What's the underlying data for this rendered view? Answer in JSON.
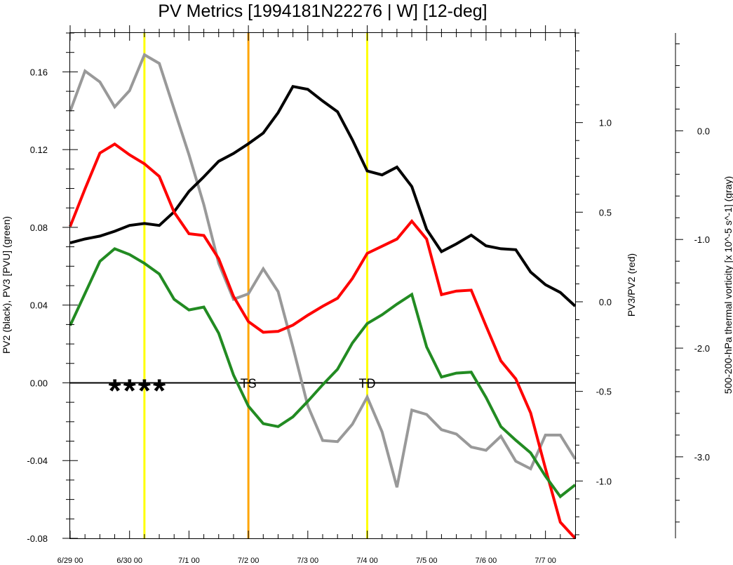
{
  "chart_data": {
    "type": "line",
    "title": "PV Metrics [1994181N22276 | W] [12-deg]",
    "x_axis": {
      "tick_labels": [
        "6/29 00",
        "6/30 00",
        "7/1 00",
        "7/2 00",
        "7/3 00",
        "7/4 00",
        "7/5 00",
        "7/6 00",
        "7/7 00"
      ],
      "tick_values": [
        0,
        1,
        2,
        3,
        4,
        5,
        6,
        7,
        8
      ],
      "range": [
        0,
        8.5
      ],
      "minor_step": 0.25
    },
    "left_axis": {
      "label": "PV2 (black), PV3 [PVU] (green)",
      "range": [
        -0.08,
        0.18
      ],
      "ticks": [
        -0.08,
        -0.04,
        0.0,
        0.04,
        0.08,
        0.12,
        0.16
      ],
      "tick_labels": [
        "-0.08",
        "-0.04",
        "0.00",
        "0.04",
        "0.08",
        "0.12",
        "0.16"
      ],
      "minor_step": 0.01
    },
    "right_axis": {
      "label": "PV3/PV2 (red)",
      "range": [
        -1.32,
        1.5
      ],
      "ticks": [
        -1.0,
        -0.5,
        0.0,
        0.5,
        1.0
      ],
      "tick_labels": [
        "-1.0",
        "-0.5",
        "0.0",
        "0.5",
        "1.0"
      ],
      "minor_step": 0.1
    },
    "far_right_axis": {
      "label": "500-200-hPa thermal vorticity [x 10^-5 s^-1] (gray)",
      "range": [
        -3.75,
        0.9
      ],
      "ticks": [
        -3.0,
        -2.0,
        -1.0,
        0.0
      ],
      "tick_labels": [
        "-3.0",
        "-2.0",
        "-1.0",
        "0.0"
      ],
      "minor_step": 0.2
    },
    "zero_line": 0.0,
    "series": [
      {
        "name": "PV2",
        "axis": "left",
        "color": "#000000",
        "x": [
          0,
          0.25,
          0.5,
          0.75,
          1,
          1.25,
          1.5,
          1.75,
          2,
          2.25,
          2.5,
          2.75,
          3,
          3.25,
          3.5,
          3.75,
          4,
          4.25,
          4.5,
          4.75,
          5,
          5.25,
          5.5,
          5.75,
          6,
          6.25,
          6.5,
          6.75,
          7,
          7.25,
          7.5,
          7.75,
          8,
          8.25,
          8.5
        ],
        "y": [
          0.072,
          0.074,
          0.0755,
          0.078,
          0.081,
          0.082,
          0.081,
          0.088,
          0.0985,
          0.106,
          0.114,
          0.118,
          0.123,
          0.1285,
          0.139,
          0.1525,
          0.151,
          0.145,
          0.1395,
          0.125,
          0.109,
          0.107,
          0.111,
          0.101,
          0.079,
          0.0675,
          0.0715,
          0.076,
          0.0705,
          0.069,
          0.0685,
          0.057,
          0.0505,
          0.0465,
          0.0395
        ]
      },
      {
        "name": "PV3",
        "axis": "left",
        "color": "#228b22",
        "x": [
          0,
          0.25,
          0.5,
          0.75,
          1,
          1.25,
          1.5,
          1.75,
          2,
          2.25,
          2.5,
          2.75,
          3,
          3.25,
          3.5,
          3.75,
          4,
          4.25,
          4.5,
          4.75,
          5,
          5.25,
          5.5,
          5.75,
          6,
          6.25,
          6.5,
          6.75,
          7,
          7.25,
          7.5,
          7.75,
          8,
          8.25,
          8.5
        ],
        "y": [
          0.0295,
          0.046,
          0.0625,
          0.069,
          0.066,
          0.0615,
          0.056,
          0.043,
          0.0375,
          0.039,
          0.0255,
          0.004,
          -0.012,
          -0.021,
          -0.0225,
          -0.0175,
          -0.0095,
          -0.001,
          0.007,
          0.0205,
          0.0305,
          0.035,
          0.0405,
          0.0455,
          0.0185,
          0.003,
          0.005,
          0.0055,
          -0.0075,
          -0.0225,
          -0.0295,
          -0.036,
          -0.048,
          -0.0585,
          -0.0525
        ]
      },
      {
        "name": "PV3/PV2",
        "axis": "right",
        "color": "#ff0000",
        "x": [
          0,
          0.25,
          0.5,
          0.75,
          1,
          1.25,
          1.5,
          1.75,
          2,
          2.25,
          2.5,
          2.75,
          3,
          3.25,
          3.5,
          3.75,
          4,
          4.25,
          4.5,
          4.75,
          5,
          5.25,
          5.5,
          5.75,
          6,
          6.25,
          6.5,
          6.75,
          7,
          7.25,
          7.5,
          7.75,
          8,
          8.25,
          8.5
        ],
        "y": [
          0.42,
          0.63,
          0.83,
          0.88,
          0.82,
          0.77,
          0.7,
          0.5,
          0.38,
          0.37,
          0.24,
          0.03,
          -0.11,
          -0.17,
          -0.165,
          -0.13,
          -0.075,
          -0.025,
          0.02,
          0.13,
          0.27,
          0.31,
          0.35,
          0.45,
          0.35,
          0.04,
          0.06,
          0.065,
          -0.135,
          -0.33,
          -0.43,
          -0.62,
          -0.93,
          -1.23,
          -1.32
        ]
      },
      {
        "name": "500-200-hPa thermal vorticity",
        "axis": "far_right",
        "color": "#999999",
        "x": [
          0,
          0.25,
          0.5,
          0.75,
          1,
          1.25,
          1.5,
          1.75,
          2,
          2.25,
          2.5,
          2.75,
          3,
          3.25,
          3.5,
          3.75,
          4,
          4.25,
          4.5,
          4.75,
          5,
          5.25,
          5.5,
          5.75,
          6,
          6.25,
          6.5,
          6.75,
          7,
          7.25,
          7.5,
          7.75,
          8,
          8.25,
          8.5
        ],
        "y": [
          0.18,
          0.55,
          0.45,
          0.22,
          0.37,
          0.7,
          0.62,
          0.2,
          -0.22,
          -0.68,
          -1.22,
          -1.55,
          -1.5,
          -1.27,
          -1.48,
          -1.99,
          -2.53,
          -2.85,
          -2.86,
          -2.7,
          -2.45,
          -2.77,
          -3.28,
          -2.57,
          -2.61,
          -2.75,
          -2.79,
          -2.91,
          -2.94,
          -2.81,
          -3.04,
          -3.11,
          -2.8,
          -2.8,
          -3.02
        ]
      }
    ],
    "vertical_lines": [
      {
        "x": 1.25,
        "color": "#ffff00"
      },
      {
        "x": 3.0,
        "color": "#ffa500"
      },
      {
        "x": 5.0,
        "color": "#ffff00"
      }
    ],
    "annotations": [
      {
        "text": "TS",
        "x": 3.0
      },
      {
        "text": "TD",
        "x": 5.0
      }
    ],
    "star_markers": {
      "glyph": "*",
      "x": [
        0.75,
        1.0,
        1.25,
        1.5
      ]
    }
  }
}
